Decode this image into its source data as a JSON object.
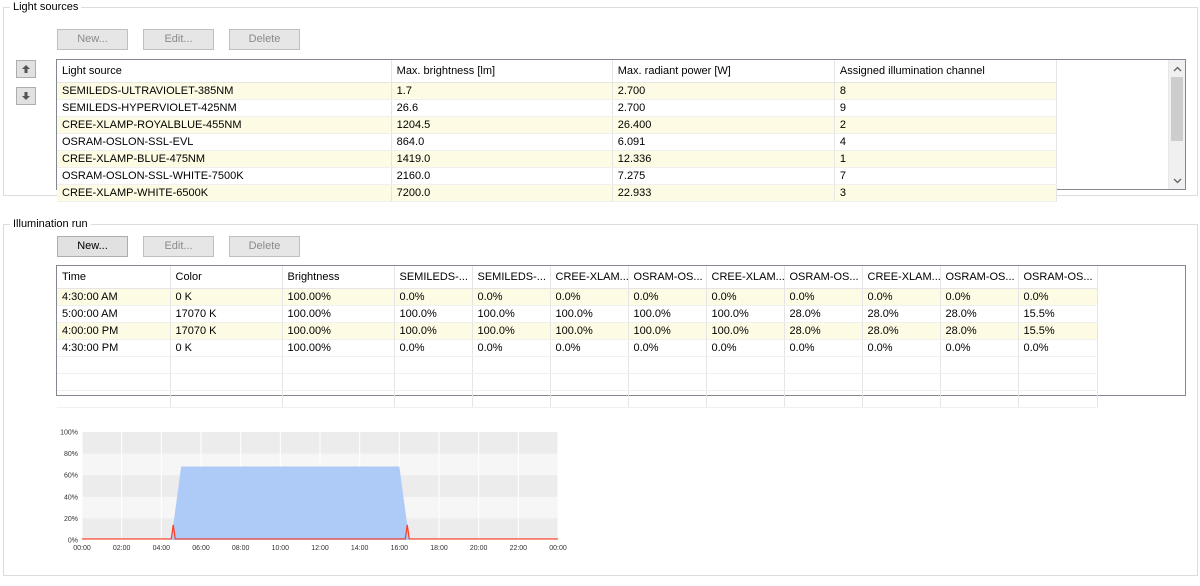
{
  "light_sources": {
    "title": "Light sources",
    "buttons": {
      "new": "New...",
      "edit": "Edit...",
      "delete": "Delete"
    },
    "columns": [
      "Light source",
      "Max. brightness [lm]",
      "Max. radiant power [W]",
      "Assigned illumination channel"
    ],
    "rows": [
      [
        "SEMILEDS-ULTRAVIOLET-385NM",
        "1.7",
        "2.700",
        "8"
      ],
      [
        "SEMILEDS-HYPERVIOLET-425NM",
        "26.6",
        "2.700",
        "9"
      ],
      [
        "CREE-XLAMP-ROYALBLUE-455NM",
        "1204.5",
        "26.400",
        "2"
      ],
      [
        "OSRAM-OSLON-SSL-EVL",
        "864.0",
        "6.091",
        "4"
      ],
      [
        "CREE-XLAMP-BLUE-475NM",
        "1419.0",
        "12.336",
        "1"
      ],
      [
        "OSRAM-OSLON-SSL-WHITE-7500K",
        "2160.0",
        "7.275",
        "7"
      ],
      [
        "CREE-XLAMP-WHITE-6500K",
        "7200.0",
        "22.933",
        "3"
      ]
    ]
  },
  "illumination_run": {
    "title": "Illumination run",
    "buttons": {
      "new": "New...",
      "edit": "Edit...",
      "delete": "Delete"
    },
    "columns": [
      "Time",
      "Color",
      "Brightness",
      "SEMILEDS-...",
      "SEMILEDS-...",
      "CREE-XLAM...",
      "OSRAM-OS...",
      "CREE-XLAM...",
      "OSRAM-OS...",
      "CREE-XLAM...",
      "OSRAM-OS...",
      "OSRAM-OS..."
    ],
    "rows": [
      [
        "4:30:00 AM",
        "0 K",
        "100.00%",
        "0.0%",
        "0.0%",
        "0.0%",
        "0.0%",
        "0.0%",
        "0.0%",
        "0.0%",
        "0.0%",
        "0.0%"
      ],
      [
        "5:00:00 AM",
        "17070 K",
        "100.00%",
        "100.0%",
        "100.0%",
        "100.0%",
        "100.0%",
        "100.0%",
        "28.0%",
        "28.0%",
        "28.0%",
        "15.5%"
      ],
      [
        "4:00:00 PM",
        "17070 K",
        "100.00%",
        "100.0%",
        "100.0%",
        "100.0%",
        "100.0%",
        "100.0%",
        "28.0%",
        "28.0%",
        "28.0%",
        "15.5%"
      ],
      [
        "4:30:00 PM",
        "0 K",
        "100.00%",
        "0.0%",
        "0.0%",
        "0.0%",
        "0.0%",
        "0.0%",
        "0.0%",
        "0.0%",
        "0.0%",
        "0.0%"
      ]
    ]
  },
  "chart_data": {
    "type": "area",
    "x_ticks": [
      "00:00",
      "02:00",
      "04:00",
      "06:00",
      "08:00",
      "10:00",
      "12:00",
      "14:00",
      "16:00",
      "18:00",
      "20:00",
      "22:00",
      "00:00"
    ],
    "y_ticks": [
      "0%",
      "20%",
      "40%",
      "60%",
      "80%",
      "100%"
    ],
    "ylim": [
      0,
      100
    ],
    "xlim_hours": [
      0,
      24
    ],
    "series": [
      {
        "color": "#aecbf7",
        "points": [
          [
            0,
            0
          ],
          [
            4.5,
            0
          ],
          [
            5.0,
            68
          ],
          [
            16.0,
            68
          ],
          [
            16.5,
            0
          ],
          [
            24,
            0
          ]
        ]
      },
      {
        "color": "#ff3b1f",
        "points": [
          [
            0,
            1
          ],
          [
            4.5,
            1
          ],
          [
            4.6,
            14
          ],
          [
            4.7,
            1
          ],
          [
            16.3,
            1
          ],
          [
            16.4,
            14
          ],
          [
            16.5,
            1
          ],
          [
            24,
            1
          ]
        ]
      }
    ]
  }
}
